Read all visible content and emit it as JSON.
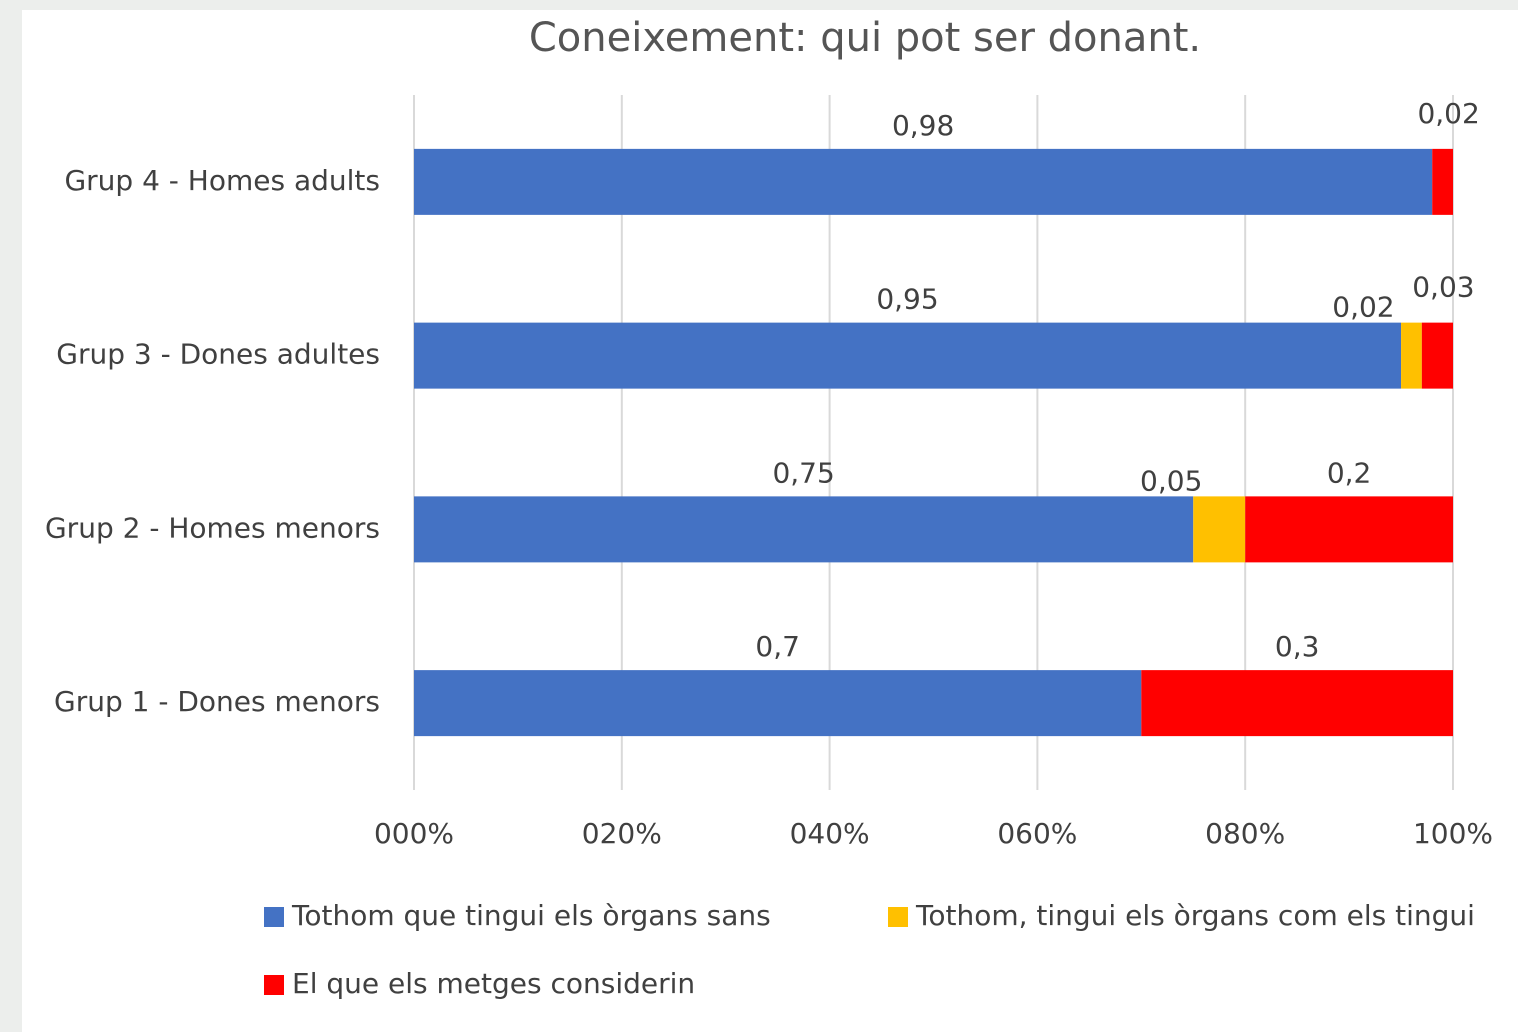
{
  "chart_data": {
    "type": "stacked-bar-horizontal",
    "title": "Coneixement: qui pot ser donant.",
    "categories": [
      "Grup 1 - Dones menors",
      "Grup 2 - Homes menors",
      "Grup 3 - Dones adultes",
      "Grup 4 - Homes adults"
    ],
    "series": [
      {
        "name": "Tothom que tingui els òrgans sans",
        "color": "#4472c4",
        "values": [
          0.7,
          0.75,
          0.95,
          0.98
        ],
        "value_labels": [
          "0,7",
          "0,75",
          "0,95",
          "0,98"
        ]
      },
      {
        "name": "Tothom, tingui els òrgans com els tingui",
        "color": "#ffc000",
        "values": [
          null,
          0.05,
          0.02,
          null
        ],
        "value_labels": [
          null,
          "0,05",
          "0,02",
          null
        ]
      },
      {
        "name": "El que els metges considerin",
        "color": "#ff0000",
        "values": [
          0.3,
          0.2,
          0.03,
          0.02
        ],
        "value_labels": [
          "0,3",
          "0,2",
          "0,03",
          "0,02"
        ]
      }
    ],
    "xlim": [
      0,
      1
    ],
    "xticks": [
      {
        "value": 0,
        "label": "000%"
      },
      {
        "value": 0.2,
        "label": "020%"
      },
      {
        "value": 0.4,
        "label": "040%"
      },
      {
        "value": 0.6,
        "label": "060%"
      },
      {
        "value": 0.8,
        "label": "080%"
      },
      {
        "value": 1,
        "label": "100%"
      }
    ],
    "grid": true,
    "legend": "bottom"
  }
}
